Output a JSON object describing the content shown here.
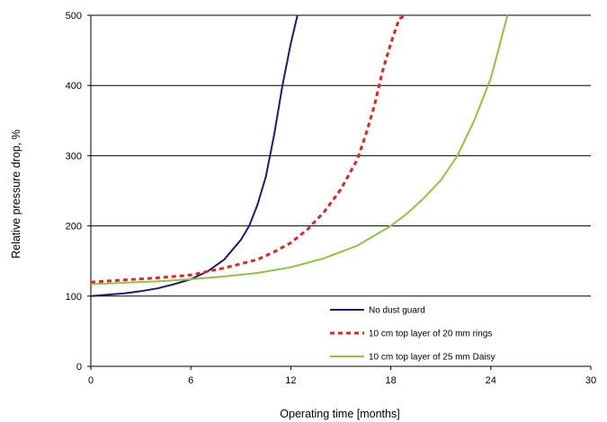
{
  "chart_data": {
    "type": "line",
    "title": "",
    "xlabel": "Operating time [months]",
    "ylabel": "Relative pressure drop, %",
    "xlim": [
      0,
      30
    ],
    "ylim": [
      0,
      500
    ],
    "x_ticks": [
      "0",
      "6",
      "12",
      "18",
      "24",
      "30"
    ],
    "y_ticks": [
      "0",
      "100",
      "200",
      "300",
      "400",
      "500"
    ],
    "grid": "horizontal",
    "legend_position": "bottom-right",
    "series": [
      {
        "name": "No dust guard",
        "color": "#1f1a6b",
        "style": "solid",
        "x": [
          0,
          1,
          2,
          3,
          4,
          5,
          6,
          7,
          8,
          9,
          9.5,
          10,
          10.5,
          11,
          11.5,
          12,
          12.4
        ],
        "y": [
          100,
          102,
          104,
          107,
          111,
          117,
          124,
          135,
          152,
          180,
          200,
          230,
          270,
          330,
          400,
          460,
          500
        ]
      },
      {
        "name": "10 cm top layer of 20 mm rings",
        "color": "#e8231f",
        "style": "dashed",
        "x": [
          0,
          2,
          4,
          6,
          8,
          10,
          11,
          12,
          13,
          14,
          15,
          16,
          16.5,
          17,
          17.5,
          18,
          18.5,
          18.9
        ],
        "y": [
          120,
          123,
          126,
          130,
          140,
          152,
          163,
          176,
          195,
          220,
          252,
          295,
          330,
          370,
          420,
          460,
          495,
          500
        ]
      },
      {
        "name": "10 cm top layer of 25 mm Daisy",
        "color": "#8cc63f",
        "style": "solid",
        "x": [
          0,
          2,
          4,
          6,
          8,
          10,
          12,
          14,
          16,
          18,
          19,
          20,
          21,
          22,
          23,
          24,
          24.5,
          25
        ],
        "y": [
          117,
          119,
          121,
          124,
          128,
          133,
          141,
          154,
          172,
          200,
          218,
          240,
          265,
          300,
          350,
          410,
          455,
          500
        ]
      }
    ]
  }
}
